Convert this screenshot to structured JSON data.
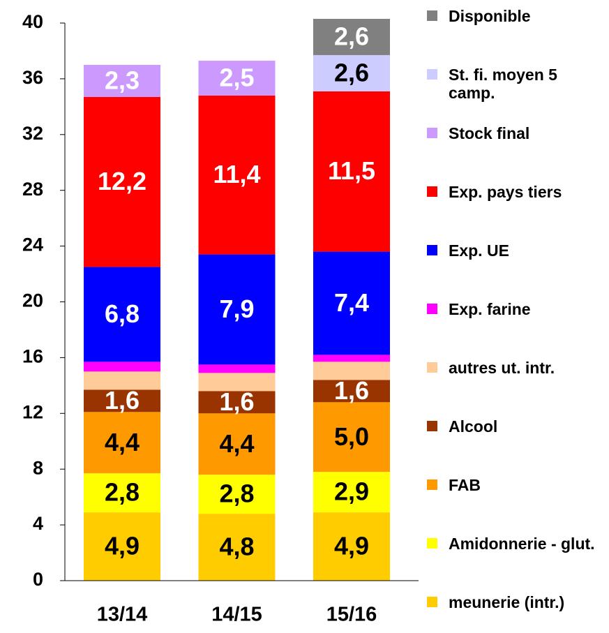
{
  "chart_data": {
    "type": "stacked_bar",
    "categories": [
      "13/14",
      "14/15",
      "15/16"
    ],
    "ylim": [
      0,
      40
    ],
    "yticks": [
      0,
      4,
      8,
      12,
      16,
      20,
      24,
      28,
      32,
      36,
      40
    ],
    "legend": "right",
    "series": [
      {
        "name": "meunerie (intr.)",
        "color": "#FFCC00",
        "label_color": "#000000",
        "values": [
          4.9,
          4.8,
          4.9
        ],
        "value_labels": [
          "4,9",
          "4,8",
          "4,9"
        ]
      },
      {
        "name": "Amidonnerie - glut.",
        "color": "#FFFF00",
        "label_color": "#000000",
        "values": [
          2.8,
          2.8,
          2.9
        ],
        "value_labels": [
          "2,8",
          "2,8",
          "2,9"
        ]
      },
      {
        "name": "FAB",
        "color": "#FF9900",
        "label_color": "#000000",
        "values": [
          4.4,
          4.4,
          5.0
        ],
        "value_labels": [
          "4,4",
          "4,4",
          "5,0"
        ]
      },
      {
        "name": "Alcool",
        "color": "#993300",
        "label_color": "#FFFFFF",
        "values": [
          1.6,
          1.6,
          1.6
        ],
        "value_labels": [
          "1,6",
          "1,6",
          "1,6"
        ]
      },
      {
        "name": "autres ut. intr.",
        "color": "#FFCC99",
        "values": [
          1.3,
          1.3,
          1.3
        ]
      },
      {
        "name": "Exp. farine",
        "color": "#FF00FF",
        "values": [
          0.7,
          0.6,
          0.5
        ]
      },
      {
        "name": "Exp. UE",
        "color": "#0000FF",
        "label_color": "#FFFFFF",
        "values": [
          6.8,
          7.9,
          7.4
        ],
        "value_labels": [
          "6,8",
          "7,9",
          "7,4"
        ]
      },
      {
        "name": "Exp. pays tiers",
        "color": "#FF0000",
        "label_color": "#FFFFFF",
        "values": [
          12.2,
          11.4,
          11.5
        ],
        "value_labels": [
          "12,2",
          "11,4",
          "11,5"
        ]
      },
      {
        "name": "Stock final",
        "color": "#CC99FF",
        "label_color": "#FFFFFF",
        "values": [
          2.3,
          2.5,
          null
        ],
        "value_labels": [
          "2,3",
          "2,5",
          null
        ]
      },
      {
        "name": "St. fi. moyen 5 camp.",
        "color": "#CCCCFF",
        "label_color": "#000000",
        "values": [
          null,
          null,
          2.6
        ],
        "value_labels": [
          null,
          null,
          "2,6"
        ]
      },
      {
        "name": "Disponible",
        "color": "#808080",
        "label_color": "#FFFFFF",
        "values": [
          null,
          null,
          2.6
        ],
        "value_labels": [
          null,
          null,
          "2,6"
        ]
      }
    ]
  }
}
